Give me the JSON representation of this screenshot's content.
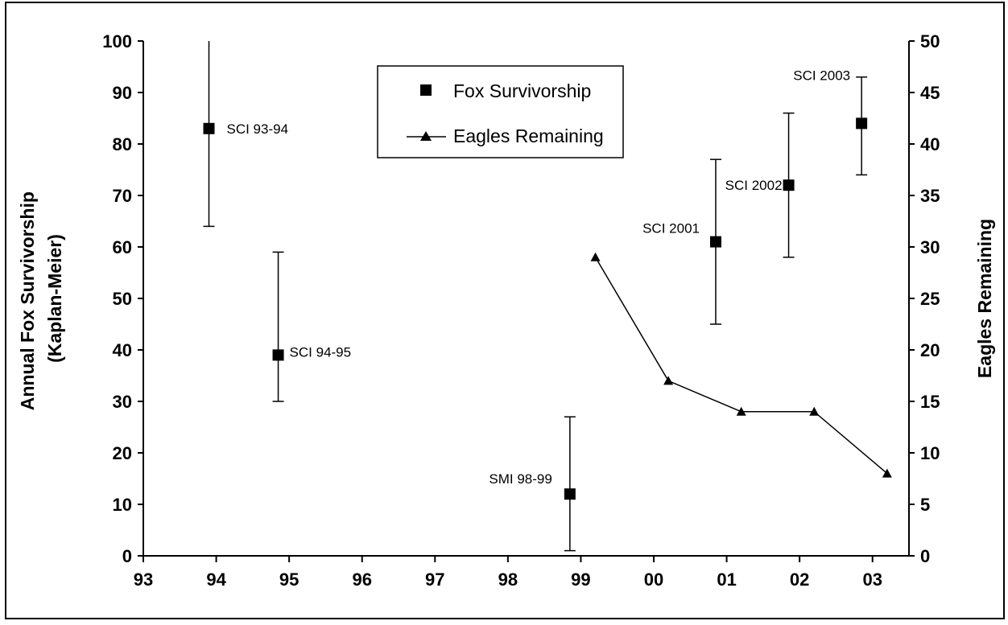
{
  "chart_data": {
    "type": "scatter",
    "x_categories": [
      "93",
      "94",
      "95",
      "96",
      "97",
      "98",
      "99",
      "00",
      "01",
      "02",
      "03"
    ],
    "y_left": {
      "label_lines": [
        "Annual Fox Survivorship",
        "(Kaplan-Meier)"
      ],
      "range": [
        0,
        100
      ],
      "ticks": [
        0,
        10,
        20,
        30,
        40,
        50,
        60,
        70,
        80,
        90,
        100
      ]
    },
    "y_right": {
      "label": "Eagles Remaining",
      "range": [
        0,
        50
      ],
      "ticks": [
        0,
        5,
        10,
        15,
        20,
        25,
        30,
        35,
        40,
        45,
        50
      ]
    },
    "legend": {
      "position": "top-center",
      "entries": [
        "Fox Survivorship",
        "Eagles Remaining"
      ]
    },
    "grid": false,
    "series": [
      {
        "name": "Fox Survivorship",
        "kind": "scatter-errorbar",
        "marker": "square",
        "axis": "left",
        "points": [
          {
            "x": 93.9,
            "y": 83,
            "low": 64,
            "high": 100,
            "label": "SCI 93-94"
          },
          {
            "x": 94.85,
            "y": 39,
            "low": 30,
            "high": 59,
            "label": "SCI 94-95"
          },
          {
            "x": 98.85,
            "y": 12,
            "low": 1,
            "high": 27,
            "label": "SMI 98-99"
          },
          {
            "x": 100.85,
            "y": 61,
            "low": 45,
            "high": 77,
            "label": "SCI 2001"
          },
          {
            "x": 101.85,
            "y": 72,
            "low": 58,
            "high": 86,
            "label": "SCI 2002"
          },
          {
            "x": 102.85,
            "y": 84,
            "low": 74,
            "high": 93,
            "label": "SCI 2003"
          }
        ]
      },
      {
        "name": "Eagles Remaining",
        "kind": "line",
        "marker": "triangle",
        "axis": "right",
        "points": [
          {
            "x": 99.2,
            "y": 29
          },
          {
            "x": 100.2,
            "y": 17
          },
          {
            "x": 101.2,
            "y": 14
          },
          {
            "x": 102.2,
            "y": 14
          },
          {
            "x": 103.2,
            "y": 8
          }
        ]
      }
    ]
  }
}
